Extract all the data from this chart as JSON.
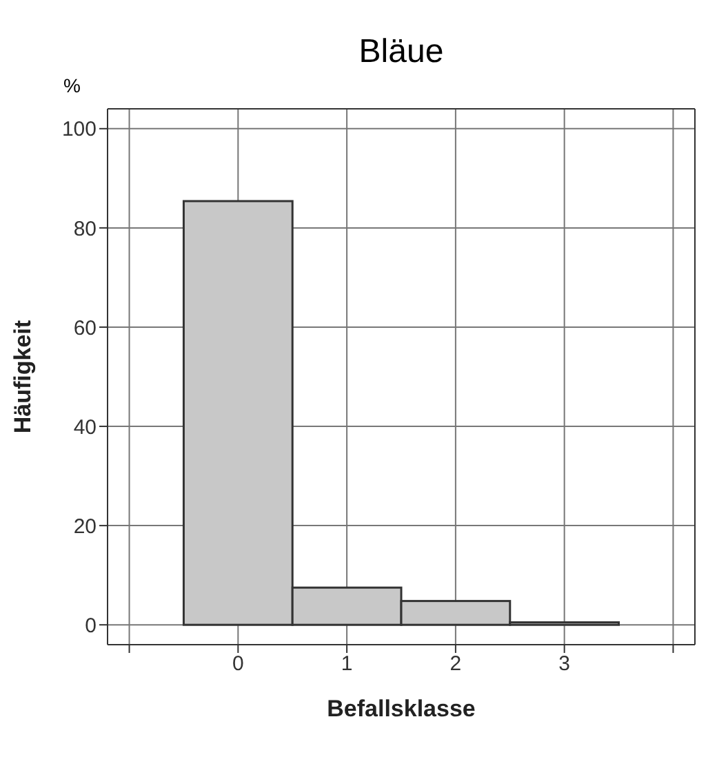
{
  "chart_data": {
    "type": "histogram",
    "title": "Bläue",
    "xlabel": "Befallsklasse",
    "ylabel": "Häufigkeit",
    "annotations": [
      "%"
    ],
    "bins": [
      -0.5,
      0.5,
      1.5,
      2.5,
      3.5
    ],
    "values": [
      85.4,
      7.5,
      4.8,
      0.5
    ],
    "color": "#c8c8c8",
    "xlim": [
      -1.2,
      4.2
    ],
    "xticks": [
      {
        "value": -1,
        "label": null
      },
      0,
      1,
      2,
      3,
      {
        "value": 4,
        "label": null
      }
    ],
    "ylim": [
      -4,
      104
    ],
    "yticks": [
      0,
      20,
      40,
      60,
      80,
      100
    ],
    "grid": true
  }
}
